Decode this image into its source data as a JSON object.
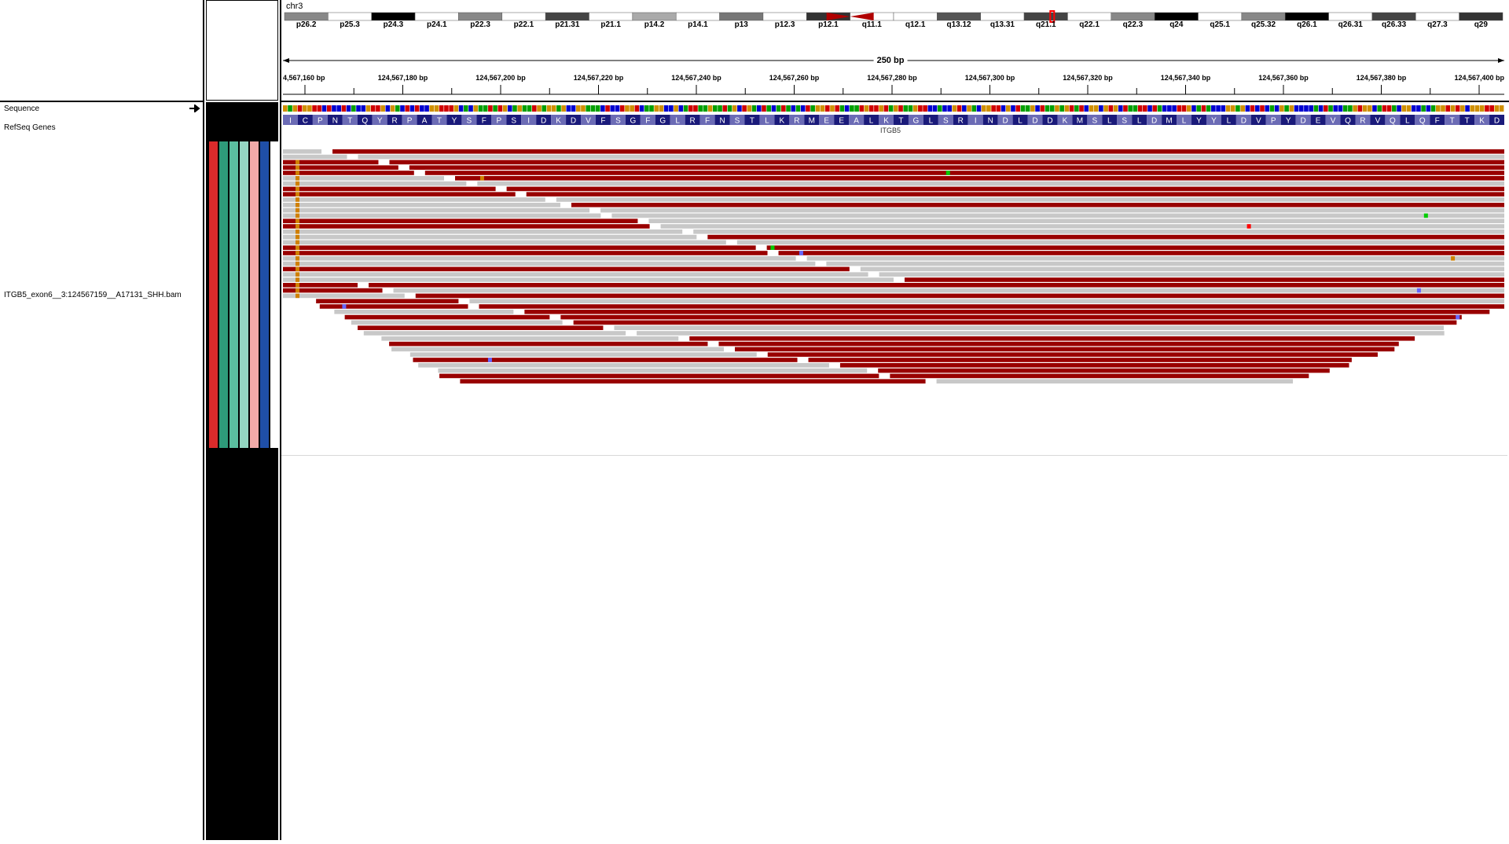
{
  "chromosome": "chr3",
  "ideogram": {
    "bands": [
      "p26.2",
      "p25.3",
      "p24.3",
      "p24.1",
      "p22.3",
      "p22.1",
      "p21.31",
      "p21.1",
      "p14.2",
      "p14.1",
      "p13",
      "p12.3",
      "p12.1",
      "q11.1",
      "q12.1",
      "q13.12",
      "q13.31",
      "q21.1",
      "q22.1",
      "q22.3",
      "q24",
      "q25.1",
      "q25.32",
      "q26.1",
      "q26.31",
      "q26.33",
      "q27.3",
      "q29"
    ]
  },
  "ruler": {
    "span_label": "250 bp",
    "tick_labels": [
      "4,567,160 bp",
      "124,567,180 bp",
      "124,567,200 bp",
      "124,567,220 bp",
      "124,567,240 bp",
      "124,567,260 bp",
      "124,567,280 bp",
      "124,567,300 bp",
      "124,567,320 bp",
      "124,567,340 bp",
      "124,567,360 bp",
      "124,567,380 bp",
      "124,567,400 bp"
    ]
  },
  "tracks": {
    "sequence_label": "Sequence",
    "genes_label": "RefSeq Genes",
    "alignment_label": "ITGB5_exon6__3:124567159__A17131_SHH.bam"
  },
  "translation": "ICPNTQYRPATYSFPSIDKDVFSGFGLRFNSTLKRMEEALKTGLSRINDLDDKMSLSLDMLYYLDVPYDEVQRVQLQFTTKD",
  "gene_name": "ITGB5",
  "attribute_colors": [
    "#d92b2b",
    "#2e9b7a",
    "#5bbfa0",
    "#94d6c2",
    "#f2aaa8",
    "#1f4fa8",
    "#ffffff"
  ],
  "colors": {
    "read_forward": "#990000",
    "read_reverse": "#c8c8c8",
    "amino_dark": "#1a1a7a",
    "amino_light": "#6b6bb5"
  },
  "strand_icon": "right-arrow-icon"
}
